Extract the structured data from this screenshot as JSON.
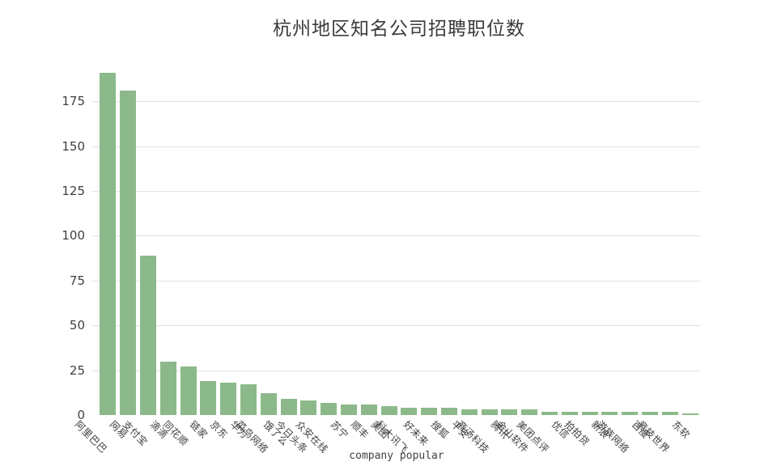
{
  "title": "杭州地区知名公司招聘职位数",
  "chart_data": {
    "type": "bar",
    "title": "杭州地区知名公司招聘职位数",
    "xlabel": "company popular",
    "ylabel": "",
    "categories": [
      "阿里巴巴",
      "网易",
      "支付宝",
      "滴滴",
      "同花顺",
      "链家",
      "京东",
      "华为",
      "菜鸟网络",
      "饿了么",
      "今日头条",
      "众安在线",
      "苏宁",
      "顺丰",
      "美图",
      "科大讯飞",
      "好未来",
      "搜狐",
      "平安",
      "商汤科技",
      "腾讯",
      "金山软件",
      "美团点评",
      "优信",
      "拍拍贷",
      "新浪",
      "游族网络",
      "百度",
      "竞技世界",
      "东软"
    ],
    "values": [
      191,
      181,
      89,
      30,
      27,
      19,
      18,
      17,
      12,
      9,
      8,
      7,
      6,
      6,
      5,
      4,
      4,
      4,
      3,
      3,
      3,
      3,
      2,
      2,
      2,
      2,
      2,
      2,
      2,
      1
    ],
    "yticks": [
      0,
      25,
      50,
      75,
      100,
      125,
      150,
      175
    ],
    "ylim": [
      0,
      195
    ],
    "grid": true,
    "gridlines": "horizontal-only",
    "legend_position": "none",
    "tick_label_rotation_deg": 45,
    "colors": {
      "bar": "#8cb98a",
      "grid": "#e2e2e2",
      "text": "#3f3f3f",
      "background": "#ffffff"
    }
  }
}
